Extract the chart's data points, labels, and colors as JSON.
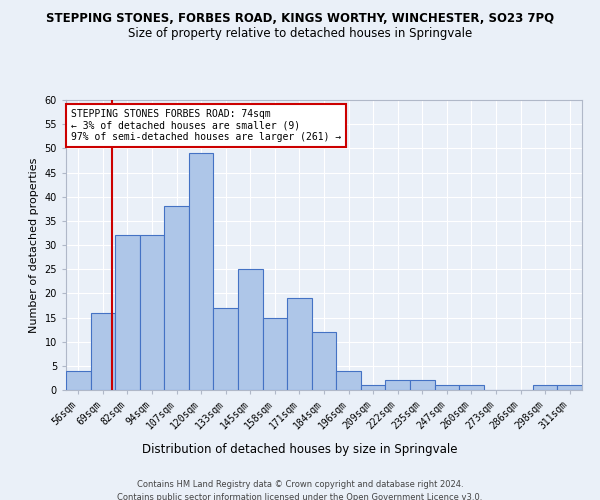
{
  "title": "STEPPING STONES, FORBES ROAD, KINGS WORTHY, WINCHESTER, SO23 7PQ",
  "subtitle": "Size of property relative to detached houses in Springvale",
  "xlabel": "Distribution of detached houses by size in Springvale",
  "ylabel": "Number of detached properties",
  "categories": [
    "56sqm",
    "69sqm",
    "82sqm",
    "94sqm",
    "107sqm",
    "120sqm",
    "133sqm",
    "145sqm",
    "158sqm",
    "171sqm",
    "184sqm",
    "196sqm",
    "209sqm",
    "222sqm",
    "235sqm",
    "247sqm",
    "260sqm",
    "273sqm",
    "286sqm",
    "298sqm",
    "311sqm"
  ],
  "values": [
    4,
    16,
    32,
    32,
    38,
    49,
    17,
    25,
    15,
    19,
    12,
    4,
    1,
    2,
    2,
    1,
    1,
    0,
    0,
    1,
    1
  ],
  "bar_color": "#aec6e8",
  "bar_edge_color": "#4472c4",
  "background_color": "#eaf0f8",
  "grid_color": "#ffffff",
  "red_line_label": "STEPPING STONES FORBES ROAD: 74sqm\n← 3% of detached houses are smaller (9)\n97% of semi-detached houses are larger (261) →",
  "annotation_box_color": "#ffffff",
  "annotation_border_color": "#cc0000",
  "footer1": "Contains HM Land Registry data © Crown copyright and database right 2024.",
  "footer2": "Contains public sector information licensed under the Open Government Licence v3.0.",
  "ylim": [
    0,
    60
  ],
  "yticks": [
    0,
    5,
    10,
    15,
    20,
    25,
    30,
    35,
    40,
    45,
    50,
    55,
    60
  ],
  "title_fontsize": 8.5,
  "subtitle_fontsize": 8.5,
  "ylabel_fontsize": 8,
  "xlabel_fontsize": 8.5,
  "tick_fontsize": 7,
  "ann_fontsize": 7,
  "footer_fontsize": 6
}
